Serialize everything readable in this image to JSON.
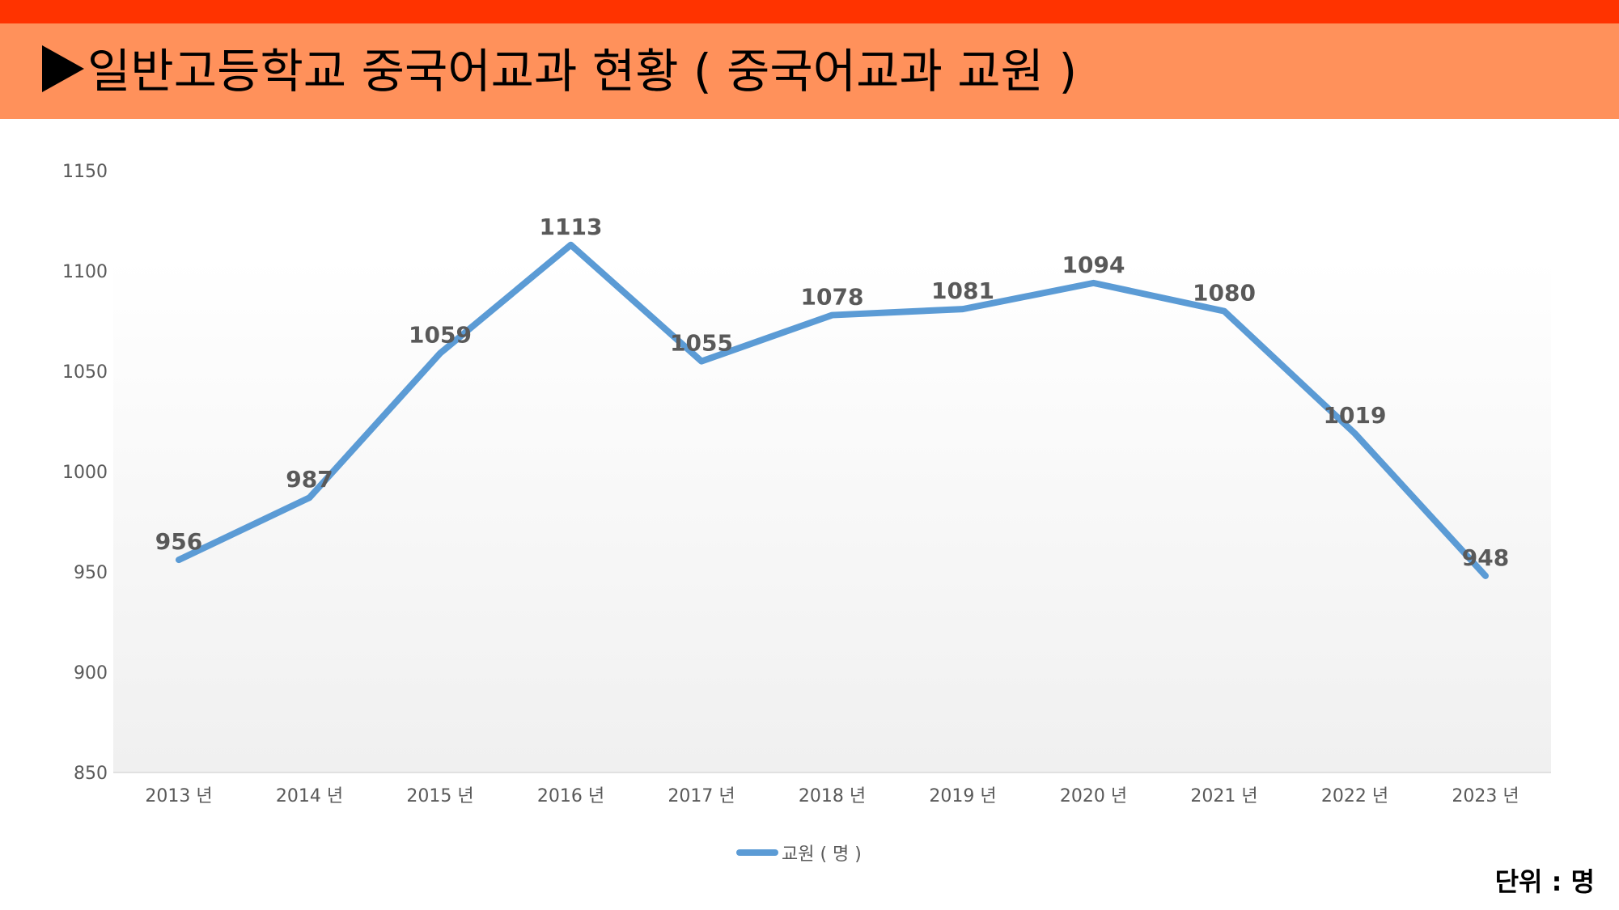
{
  "header": {
    "title": "일반고등학교 중국어교과 현황 ( 중국어교과 교원 )"
  },
  "unit_label": "단위 :  명",
  "colors": {
    "top_bar": "#ff3300",
    "title_bar": "#ff915b",
    "series": "#5b9bd5"
  },
  "chart_data": {
    "type": "line",
    "title": "일반고등학교 중국어교과 현황 ( 중국어교과 교원 )",
    "categories": [
      "2013 년",
      "2014 년",
      "2015 년",
      "2016 년",
      "2017 년",
      "2018 년",
      "2019 년",
      "2020 년",
      "2021 년",
      "2022 년",
      "2023 년"
    ],
    "series": [
      {
        "name": "교원 ( 명 )",
        "values": [
          956,
          987,
          1059,
          1113,
          1055,
          1078,
          1081,
          1094,
          1080,
          1019,
          948
        ]
      }
    ],
    "ylim": [
      850,
      1150
    ],
    "yticks": [
      850,
      900,
      950,
      1000,
      1050,
      1100,
      1150
    ],
    "xlabel": "",
    "ylabel": "",
    "legend": "bottom",
    "grid": false,
    "data_labels": true
  }
}
